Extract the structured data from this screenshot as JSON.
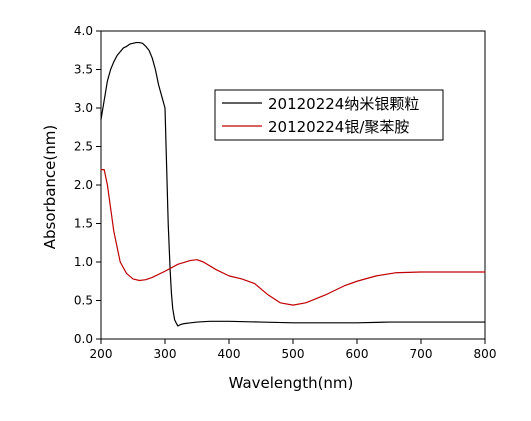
{
  "chart_data": {
    "type": "line",
    "title": "",
    "xlabel": "Wavelength(nm)",
    "ylabel": "Absorbance(nm)",
    "xlim": [
      200,
      800
    ],
    "ylim": [
      0.0,
      4.0
    ],
    "x_ticks": [
      200,
      300,
      400,
      500,
      600,
      700,
      800
    ],
    "y_ticks": [
      0.0,
      0.5,
      1.0,
      1.5,
      2.0,
      2.5,
      3.0,
      3.5,
      4.0
    ],
    "x_tick_labels": [
      "200",
      "300",
      "400",
      "500",
      "600",
      "700",
      "800"
    ],
    "y_tick_labels": [
      "0.0",
      "0.5",
      "1.0",
      "1.5",
      "2.0",
      "2.5",
      "3.0",
      "3.5",
      "4.0"
    ],
    "grid": false,
    "legend_position": "top-right",
    "series": [
      {
        "name": "20120224纳米银颗粒",
        "color": "#000000",
        "x": [
          200,
          205,
          210,
          215,
          220,
          225,
          230,
          235,
          240,
          245,
          250,
          255,
          260,
          265,
          270,
          275,
          280,
          285,
          290,
          295,
          300,
          305,
          308,
          310,
          312,
          315,
          318,
          320,
          325,
          330,
          340,
          350,
          370,
          400,
          450,
          500,
          550,
          600,
          650,
          700,
          750,
          800
        ],
        "y": [
          2.85,
          3.1,
          3.35,
          3.5,
          3.6,
          3.68,
          3.73,
          3.78,
          3.8,
          3.83,
          3.84,
          3.85,
          3.85,
          3.84,
          3.8,
          3.75,
          3.65,
          3.5,
          3.3,
          3.15,
          3.0,
          1.5,
          0.9,
          0.6,
          0.4,
          0.25,
          0.2,
          0.17,
          0.19,
          0.2,
          0.21,
          0.22,
          0.23,
          0.23,
          0.22,
          0.21,
          0.21,
          0.21,
          0.22,
          0.22,
          0.22,
          0.22
        ]
      },
      {
        "name": "20120224银/聚苯胺",
        "color": "#c00000",
        "x": [
          200,
          205,
          210,
          215,
          220,
          230,
          240,
          250,
          260,
          270,
          280,
          300,
          320,
          340,
          350,
          360,
          380,
          400,
          420,
          440,
          460,
          480,
          500,
          520,
          550,
          580,
          600,
          630,
          660,
          700,
          750,
          800
        ],
        "y": [
          2.2,
          2.2,
          2.0,
          1.7,
          1.4,
          1.0,
          0.85,
          0.78,
          0.76,
          0.77,
          0.8,
          0.88,
          0.97,
          1.02,
          1.03,
          1.0,
          0.9,
          0.82,
          0.78,
          0.72,
          0.58,
          0.47,
          0.44,
          0.47,
          0.57,
          0.69,
          0.75,
          0.82,
          0.86,
          0.87,
          0.87,
          0.87
        ]
      }
    ]
  },
  "colors": {
    "axis": "#000000",
    "background": "#ffffff"
  }
}
